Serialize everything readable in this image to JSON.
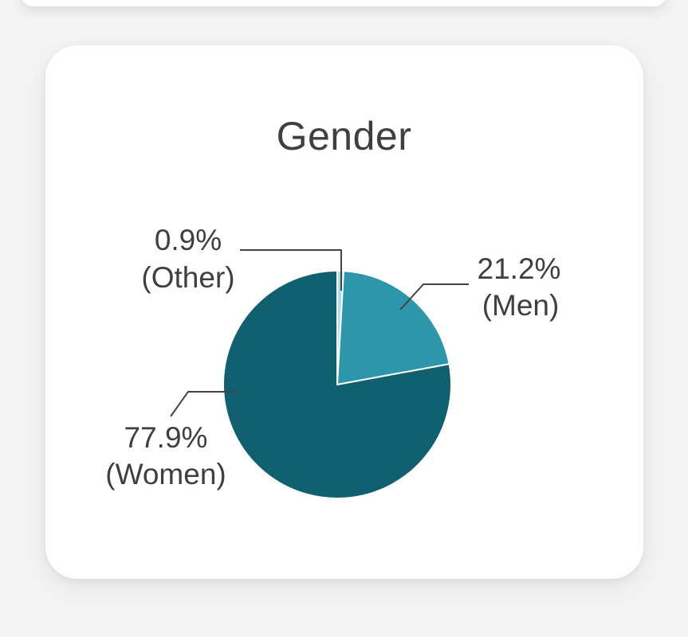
{
  "chart_data": {
    "type": "pie",
    "title": "Gender",
    "direction": "clockwise",
    "start_angle_deg": 0,
    "legend_position": "none",
    "labels_style": "outside-with-leader-lines",
    "slice_border_color": "#ffffff",
    "label_color": "#3f3f3f",
    "leader_line_color": "#434343",
    "card_background": "#ffffff",
    "page_background": "#f4f4f5",
    "categories": [
      "Other",
      "Men",
      "Women"
    ],
    "values": [
      0.9,
      21.2,
      77.9
    ],
    "slices": [
      {
        "label": "Other",
        "value_pct": 0.9,
        "color": "#a6dfec",
        "display_line1": "0.9%",
        "display_line2": "(Other)"
      },
      {
        "label": "Men",
        "value_pct": 21.2,
        "color": "#2e96ab",
        "display_line1": "21.2%",
        "display_line2": "(Men)"
      },
      {
        "label": "Women",
        "value_pct": 77.9,
        "color": "#11606f",
        "display_line1": "77.9%",
        "display_line2": "(Women)"
      }
    ]
  }
}
